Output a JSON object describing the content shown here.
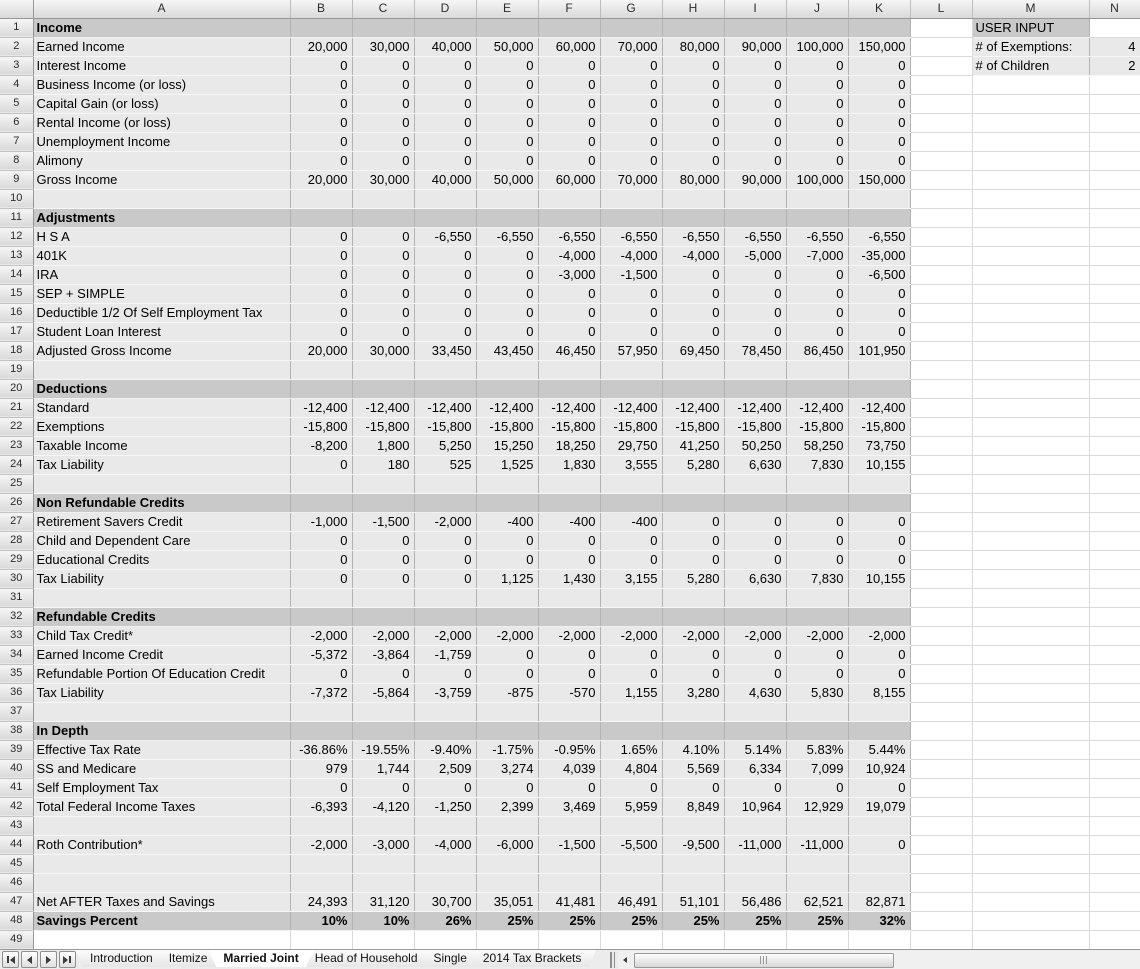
{
  "sheet": {
    "column_letters": [
      "A",
      "B",
      "C",
      "D",
      "E",
      "F",
      "G",
      "H",
      "I",
      "J",
      "K",
      "L",
      "M",
      "N"
    ],
    "rows": [
      {
        "n": "1",
        "type": "section",
        "label": "Income",
        "v": []
      },
      {
        "n": "2",
        "type": "data",
        "label": "Earned Income",
        "v": [
          "20,000",
          "30,000",
          "40,000",
          "50,000",
          "60,000",
          "70,000",
          "80,000",
          "90,000",
          "100,000",
          "150,000"
        ]
      },
      {
        "n": "3",
        "type": "data",
        "label": "Interest Income",
        "v": [
          "0",
          "0",
          "0",
          "0",
          "0",
          "0",
          "0",
          "0",
          "0",
          "0"
        ]
      },
      {
        "n": "4",
        "type": "data",
        "label": "Business Income (or loss)",
        "v": [
          "0",
          "0",
          "0",
          "0",
          "0",
          "0",
          "0",
          "0",
          "0",
          "0"
        ]
      },
      {
        "n": "5",
        "type": "data",
        "label": "Capital Gain (or loss)",
        "v": [
          "0",
          "0",
          "0",
          "0",
          "0",
          "0",
          "0",
          "0",
          "0",
          "0"
        ]
      },
      {
        "n": "6",
        "type": "data",
        "label": "Rental Income (or loss)",
        "v": [
          "0",
          "0",
          "0",
          "0",
          "0",
          "0",
          "0",
          "0",
          "0",
          "0"
        ]
      },
      {
        "n": "7",
        "type": "data",
        "label": "Unemployment Income",
        "v": [
          "0",
          "0",
          "0",
          "0",
          "0",
          "0",
          "0",
          "0",
          "0",
          "0"
        ]
      },
      {
        "n": "8",
        "type": "data",
        "label": "Alimony",
        "v": [
          "0",
          "0",
          "0",
          "0",
          "0",
          "0",
          "0",
          "0",
          "0",
          "0"
        ]
      },
      {
        "n": "9",
        "type": "data",
        "label": "Gross Income",
        "v": [
          "20,000",
          "30,000",
          "40,000",
          "50,000",
          "60,000",
          "70,000",
          "80,000",
          "90,000",
          "100,000",
          "150,000"
        ]
      },
      {
        "n": "10",
        "type": "blank",
        "label": "",
        "v": []
      },
      {
        "n": "11",
        "type": "section",
        "label": "Adjustments",
        "v": []
      },
      {
        "n": "12",
        "type": "data",
        "label": "H S A",
        "v": [
          "0",
          "0",
          "-6,550",
          "-6,550",
          "-6,550",
          "-6,550",
          "-6,550",
          "-6,550",
          "-6,550",
          "-6,550"
        ]
      },
      {
        "n": "13",
        "type": "data",
        "label": "401K",
        "v": [
          "0",
          "0",
          "0",
          "0",
          "-4,000",
          "-4,000",
          "-4,000",
          "-5,000",
          "-7,000",
          "-35,000"
        ]
      },
      {
        "n": "14",
        "type": "data",
        "label": "IRA",
        "v": [
          "0",
          "0",
          "0",
          "0",
          "-3,000",
          "-1,500",
          "0",
          "0",
          "0",
          "-6,500"
        ]
      },
      {
        "n": "15",
        "type": "data",
        "label": "SEP + SIMPLE",
        "v": [
          "0",
          "0",
          "0",
          "0",
          "0",
          "0",
          "0",
          "0",
          "0",
          "0"
        ]
      },
      {
        "n": "16",
        "type": "data",
        "label": "Deductible 1/2 Of Self Employment Tax",
        "v": [
          "0",
          "0",
          "0",
          "0",
          "0",
          "0",
          "0",
          "0",
          "0",
          "0"
        ]
      },
      {
        "n": "17",
        "type": "data",
        "label": "Student Loan Interest",
        "v": [
          "0",
          "0",
          "0",
          "0",
          "0",
          "0",
          "0",
          "0",
          "0",
          "0"
        ]
      },
      {
        "n": "18",
        "type": "data",
        "label": "Adjusted Gross Income",
        "v": [
          "20,000",
          "30,000",
          "33,450",
          "43,450",
          "46,450",
          "57,950",
          "69,450",
          "78,450",
          "86,450",
          "101,950"
        ]
      },
      {
        "n": "19",
        "type": "blank",
        "label": "",
        "v": []
      },
      {
        "n": "20",
        "type": "section",
        "label": "Deductions",
        "v": []
      },
      {
        "n": "21",
        "type": "data",
        "label": "Standard",
        "v": [
          "-12,400",
          "-12,400",
          "-12,400",
          "-12,400",
          "-12,400",
          "-12,400",
          "-12,400",
          "-12,400",
          "-12,400",
          "-12,400"
        ]
      },
      {
        "n": "22",
        "type": "data",
        "label": "Exemptions",
        "v": [
          "-15,800",
          "-15,800",
          "-15,800",
          "-15,800",
          "-15,800",
          "-15,800",
          "-15,800",
          "-15,800",
          "-15,800",
          "-15,800"
        ]
      },
      {
        "n": "23",
        "type": "data",
        "label": "Taxable Income",
        "v": [
          "-8,200",
          "1,800",
          "5,250",
          "15,250",
          "18,250",
          "29,750",
          "41,250",
          "50,250",
          "58,250",
          "73,750"
        ]
      },
      {
        "n": "24",
        "type": "data",
        "label": "Tax Liability",
        "v": [
          "0",
          "180",
          "525",
          "1,525",
          "1,830",
          "3,555",
          "5,280",
          "6,630",
          "7,830",
          "10,155"
        ]
      },
      {
        "n": "25",
        "type": "blank",
        "label": "",
        "v": []
      },
      {
        "n": "26",
        "type": "section",
        "label": "Non Refundable Credits",
        "v": []
      },
      {
        "n": "27",
        "type": "data",
        "label": "Retirement Savers Credit",
        "v": [
          "-1,000",
          "-1,500",
          "-2,000",
          "-400",
          "-400",
          "-400",
          "0",
          "0",
          "0",
          "0"
        ]
      },
      {
        "n": "28",
        "type": "data",
        "label": "Child and Dependent Care",
        "v": [
          "0",
          "0",
          "0",
          "0",
          "0",
          "0",
          "0",
          "0",
          "0",
          "0"
        ]
      },
      {
        "n": "29",
        "type": "data",
        "label": "Educational Credits",
        "v": [
          "0",
          "0",
          "0",
          "0",
          "0",
          "0",
          "0",
          "0",
          "0",
          "0"
        ]
      },
      {
        "n": "30",
        "type": "data",
        "label": "Tax Liability",
        "v": [
          "0",
          "0",
          "0",
          "1,125",
          "1,430",
          "3,155",
          "5,280",
          "6,630",
          "7,830",
          "10,155"
        ]
      },
      {
        "n": "31",
        "type": "blank",
        "label": "",
        "v": []
      },
      {
        "n": "32",
        "type": "section",
        "label": "Refundable Credits",
        "v": []
      },
      {
        "n": "33",
        "type": "data",
        "label": "Child Tax Credit*",
        "v": [
          "-2,000",
          "-2,000",
          "-2,000",
          "-2,000",
          "-2,000",
          "-2,000",
          "-2,000",
          "-2,000",
          "-2,000",
          "-2,000"
        ]
      },
      {
        "n": "34",
        "type": "data",
        "label": "Earned Income Credit",
        "v": [
          "-5,372",
          "-3,864",
          "-1,759",
          "0",
          "0",
          "0",
          "0",
          "0",
          "0",
          "0"
        ]
      },
      {
        "n": "35",
        "type": "data",
        "label": "Refundable Portion Of Education Credit",
        "v": [
          "0",
          "0",
          "0",
          "0",
          "0",
          "0",
          "0",
          "0",
          "0",
          "0"
        ]
      },
      {
        "n": "36",
        "type": "data",
        "label": "Tax Liability",
        "v": [
          "-7,372",
          "-5,864",
          "-3,759",
          "-875",
          "-570",
          "1,155",
          "3,280",
          "4,630",
          "5,830",
          "8,155"
        ]
      },
      {
        "n": "37",
        "type": "blank",
        "label": "",
        "v": []
      },
      {
        "n": "38",
        "type": "section",
        "label": "In Depth",
        "v": []
      },
      {
        "n": "39",
        "type": "data",
        "label": "Effective Tax Rate",
        "v": [
          "-36.86%",
          "-19.55%",
          "-9.40%",
          "-1.75%",
          "-0.95%",
          "1.65%",
          "4.10%",
          "5.14%",
          "5.83%",
          "5.44%"
        ]
      },
      {
        "n": "40",
        "type": "data",
        "label": "SS and Medicare",
        "v": [
          "979",
          "1,744",
          "2,509",
          "3,274",
          "4,039",
          "4,804",
          "5,569",
          "6,334",
          "7,099",
          "10,924"
        ]
      },
      {
        "n": "41",
        "type": "data",
        "label": "Self Employment Tax",
        "v": [
          "0",
          "0",
          "0",
          "0",
          "0",
          "0",
          "0",
          "0",
          "0",
          "0"
        ]
      },
      {
        "n": "42",
        "type": "data",
        "label": "Total Federal Income Taxes",
        "v": [
          "-6,393",
          "-4,120",
          "-1,250",
          "2,399",
          "3,469",
          "5,959",
          "8,849",
          "10,964",
          "12,929",
          "19,079"
        ]
      },
      {
        "n": "43",
        "type": "blank",
        "label": "",
        "v": []
      },
      {
        "n": "44",
        "type": "data",
        "label": "Roth Contribution*",
        "v": [
          "-2,000",
          "-3,000",
          "-4,000",
          "-6,000",
          "-1,500",
          "-5,500",
          "-9,500",
          "-11,000",
          "-11,000",
          "0"
        ]
      },
      {
        "n": "45",
        "type": "blank",
        "label": "",
        "v": []
      },
      {
        "n": "46",
        "type": "blank",
        "label": "",
        "v": []
      },
      {
        "n": "47",
        "type": "data",
        "label": "Net AFTER Taxes and Savings",
        "v": [
          "24,393",
          "31,120",
          "30,700",
          "35,051",
          "41,481",
          "46,491",
          "51,101",
          "56,486",
          "62,521",
          "82,871"
        ]
      },
      {
        "n": "48",
        "type": "total",
        "label": "Savings Percent",
        "v": [
          "10%",
          "10%",
          "26%",
          "25%",
          "25%",
          "25%",
          "25%",
          "25%",
          "25%",
          "32%"
        ]
      },
      {
        "n": "49",
        "type": "out",
        "label": "",
        "v": []
      }
    ]
  },
  "user_input": {
    "header": "USER INPUT",
    "fields": [
      {
        "label": "# of Exemptions:",
        "value": "4"
      },
      {
        "label": "# of Children",
        "value": "2"
      }
    ]
  },
  "tabs": {
    "items": [
      "Introduction",
      "Itemize",
      "Married Joint",
      "Head of Household",
      "Single",
      "2014 Tax Brackets"
    ],
    "active_index": 2
  }
}
